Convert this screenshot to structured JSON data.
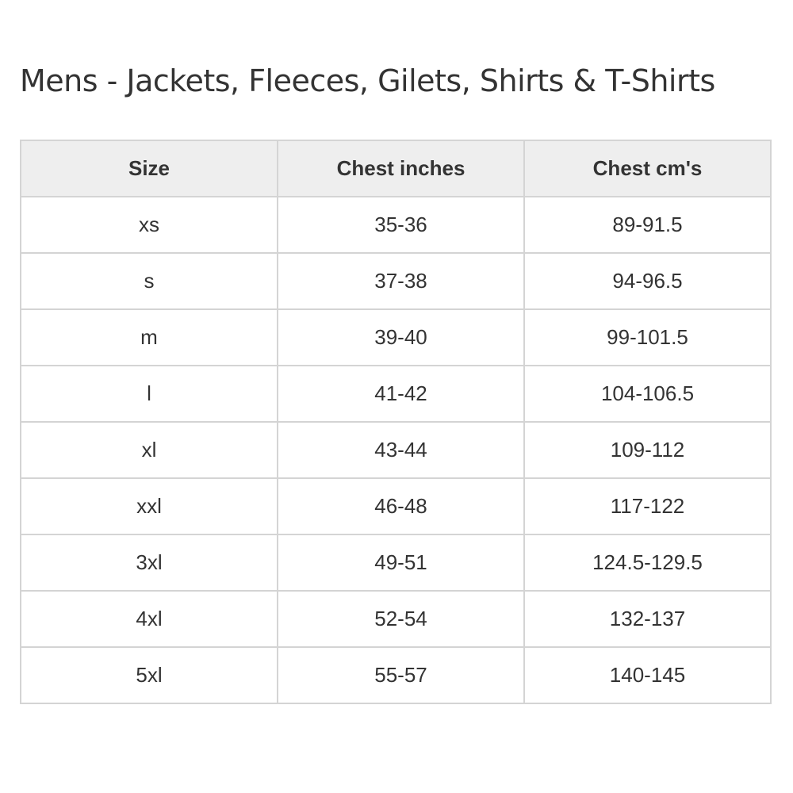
{
  "title": "Mens - Jackets, Fleeces, Gilets, Shirts & T-Shirts",
  "table": {
    "headers": [
      "Size",
      "Chest inches",
      "Chest cm's"
    ],
    "rows": [
      [
        "xs",
        "35-36",
        "89-91.5"
      ],
      [
        "s",
        "37-38",
        "94-96.5"
      ],
      [
        "m",
        "39-40",
        "99-101.5"
      ],
      [
        "l",
        "41-42",
        "104-106.5"
      ],
      [
        "xl",
        "43-44",
        "109-112"
      ],
      [
        "xxl",
        "46-48",
        "117-122"
      ],
      [
        "3xl",
        "49-51",
        "124.5-129.5"
      ],
      [
        "4xl",
        "52-54",
        "132-137"
      ],
      [
        "5xl",
        "55-57",
        "140-145"
      ]
    ]
  }
}
